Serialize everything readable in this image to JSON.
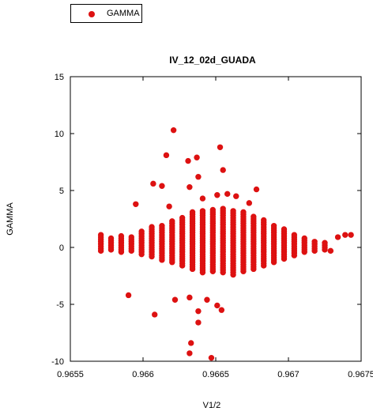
{
  "legend": {
    "label": "GAMMA",
    "color": "#dd1111"
  },
  "chart_data": {
    "type": "scatter",
    "title": "IV_12_02d_GUADA",
    "xlabel": "V1/2",
    "ylabel": "GAMMA",
    "xlim": [
      0.9655,
      0.9675
    ],
    "ylim": [
      -10,
      15
    ],
    "x_ticks": [
      "0.9655",
      "0.966",
      "0.9665",
      "0.967",
      "0.9675"
    ],
    "x_tick_values": [
      0.9655,
      0.966,
      0.9665,
      0.967,
      0.9675
    ],
    "y_ticks": [
      "15",
      "10",
      "5",
      "0",
      "-5",
      "-10"
    ],
    "y_tick_values": [
      15,
      10,
      5,
      0,
      -5,
      -10
    ],
    "grid": false,
    "legend_position": "top-left",
    "series": [
      {
        "name": "GAMMA",
        "color": "#dd1111",
        "marker": "circle",
        "columns": [
          {
            "x": 0.96571,
            "y": [
              -0.3,
              1.2
            ]
          },
          {
            "x": 0.96578,
            "y": [
              -0.2,
              0.8
            ]
          },
          {
            "x": 0.96585,
            "y": [
              -0.4,
              1.1
            ]
          },
          {
            "x": 0.96592,
            "y": [
              -0.3,
              0.9
            ]
          },
          {
            "x": 0.96599,
            "y": [
              -0.6,
              1.4
            ]
          },
          {
            "x": 0.96606,
            "y": [
              -0.8,
              1.8
            ]
          },
          {
            "x": 0.96613,
            "y": [
              -1.1,
              2.0
            ]
          },
          {
            "x": 0.9662,
            "y": [
              -1.3,
              2.4
            ]
          },
          {
            "x": 0.96627,
            "y": [
              -1.6,
              2.7
            ]
          },
          {
            "x": 0.96634,
            "y": [
              -1.9,
              3.1
            ]
          },
          {
            "x": 0.96641,
            "y": [
              -2.2,
              3.3
            ]
          },
          {
            "x": 0.96648,
            "y": [
              -2.1,
              3.4
            ]
          },
          {
            "x": 0.96655,
            "y": [
              -2.2,
              3.4
            ]
          },
          {
            "x": 0.96662,
            "y": [
              -2.4,
              3.3
            ]
          },
          {
            "x": 0.96669,
            "y": [
              -2.1,
              3.1
            ]
          },
          {
            "x": 0.96676,
            "y": [
              -1.9,
              2.8
            ]
          },
          {
            "x": 0.96683,
            "y": [
              -1.6,
              2.4
            ]
          },
          {
            "x": 0.9669,
            "y": [
              -1.3,
              2.0
            ]
          },
          {
            "x": 0.96697,
            "y": [
              -1.0,
              1.6
            ]
          },
          {
            "x": 0.96704,
            "y": [
              -0.7,
              1.1
            ]
          },
          {
            "x": 0.96711,
            "y": [
              -0.4,
              0.8
            ]
          },
          {
            "x": 0.96718,
            "y": [
              -0.3,
              0.6
            ]
          },
          {
            "x": 0.96725,
            "y": [
              -0.2,
              0.5
            ]
          }
        ],
        "points": [
          [
            0.96621,
            10.3
          ],
          [
            0.96616,
            8.1
          ],
          [
            0.96653,
            8.8
          ],
          [
            0.96631,
            7.6
          ],
          [
            0.96637,
            7.9
          ],
          [
            0.96638,
            6.2
          ],
          [
            0.96655,
            6.8
          ],
          [
            0.96607,
            5.6
          ],
          [
            0.96613,
            5.4
          ],
          [
            0.96632,
            5.3
          ],
          [
            0.96651,
            4.6
          ],
          [
            0.96641,
            4.3
          ],
          [
            0.96658,
            4.7
          ],
          [
            0.96664,
            4.5
          ],
          [
            0.96678,
            5.1
          ],
          [
            0.96595,
            3.8
          ],
          [
            0.96618,
            3.6
          ],
          [
            0.96673,
            3.9
          ],
          [
            0.9659,
            -4.2
          ],
          [
            0.96608,
            -5.9
          ],
          [
            0.96622,
            -4.6
          ],
          [
            0.96632,
            -4.4
          ],
          [
            0.96638,
            -5.6
          ],
          [
            0.96644,
            -4.6
          ],
          [
            0.96651,
            -5.1
          ],
          [
            0.96654,
            -5.5
          ],
          [
            0.96638,
            -6.6
          ],
          [
            0.96633,
            -8.4
          ],
          [
            0.96632,
            -9.3
          ],
          [
            0.96647,
            -9.7
          ],
          [
            0.96739,
            1.1
          ],
          [
            0.96743,
            1.1
          ],
          [
            0.96734,
            0.9
          ],
          [
            0.96729,
            -0.3
          ]
        ]
      }
    ]
  }
}
